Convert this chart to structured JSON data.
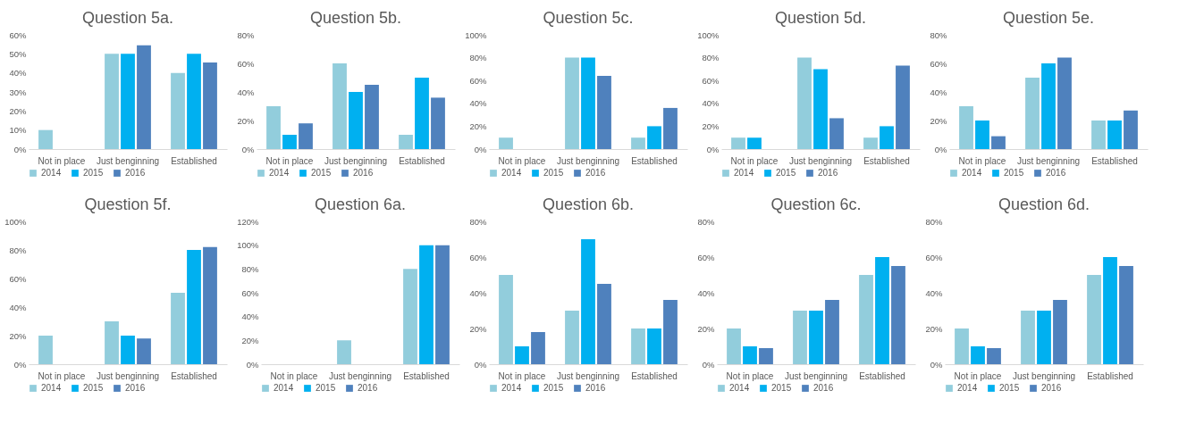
{
  "chart_data": [
    {
      "type": "bar",
      "title": "Question 5a.",
      "categories": [
        "Not in place",
        "Just benginning",
        "Established"
      ],
      "legend": "bottom",
      "ylim": [
        0,
        60
      ],
      "yticks": [
        {
          "value": 0,
          "label": "0%"
        },
        {
          "value": 10,
          "label": "10%"
        },
        {
          "value": 20,
          "label": "20%"
        },
        {
          "value": 30,
          "label": "30%"
        },
        {
          "value": 40,
          "label": "40%"
        },
        {
          "value": 50,
          "label": "50%"
        },
        {
          "value": 60,
          "label": "60%"
        }
      ],
      "series": [
        {
          "name": "2014",
          "color": "#92cddc",
          "values": [
            10,
            50,
            40
          ]
        },
        {
          "name": "2015",
          "color": "#00b0f0",
          "values": [
            0,
            50,
            50
          ]
        },
        {
          "name": "2016",
          "color": "#4f81bd",
          "values": [
            0,
            54.5,
            45.5
          ]
        }
      ]
    },
    {
      "type": "bar",
      "title": "Question 5b.",
      "categories": [
        "Not in place",
        "Just benginning",
        "Established"
      ],
      "legend": "bottom",
      "ylim": [
        0,
        80
      ],
      "yticks": [
        {
          "value": 0,
          "label": "0%"
        },
        {
          "value": 20,
          "label": "20%"
        },
        {
          "value": 40,
          "label": "40%"
        },
        {
          "value": 60,
          "label": "60%"
        },
        {
          "value": 80,
          "label": "80%"
        }
      ],
      "series": [
        {
          "name": "2014",
          "color": "#92cddc",
          "values": [
            30,
            60,
            10
          ]
        },
        {
          "name": "2015",
          "color": "#00b0f0",
          "values": [
            10,
            40,
            50
          ]
        },
        {
          "name": "2016",
          "color": "#4f81bd",
          "values": [
            18,
            45,
            36
          ]
        }
      ]
    },
    {
      "type": "bar",
      "title": "Question 5c.",
      "categories": [
        "Not in place",
        "Just benginning",
        "Established"
      ],
      "legend": "bottom",
      "ylim": [
        0,
        100
      ],
      "yticks": [
        {
          "value": 0,
          "label": "0%"
        },
        {
          "value": 20,
          "label": "20%"
        },
        {
          "value": 40,
          "label": "40%"
        },
        {
          "value": 60,
          "label": "60%"
        },
        {
          "value": 80,
          "label": "80%"
        },
        {
          "value": 100,
          "label": "100%"
        }
      ],
      "series": [
        {
          "name": "2014",
          "color": "#92cddc",
          "values": [
            10,
            80,
            10
          ]
        },
        {
          "name": "2015",
          "color": "#00b0f0",
          "values": [
            0,
            80,
            20
          ]
        },
        {
          "name": "2016",
          "color": "#4f81bd",
          "values": [
            0,
            64,
            36
          ]
        }
      ]
    },
    {
      "type": "bar",
      "title": "Question 5d.",
      "categories": [
        "Not in place",
        "Just benginning",
        "Established"
      ],
      "legend": "bottom",
      "ylim": [
        0,
        100
      ],
      "yticks": [
        {
          "value": 0,
          "label": "0%"
        },
        {
          "value": 20,
          "label": "20%"
        },
        {
          "value": 40,
          "label": "40%"
        },
        {
          "value": 60,
          "label": "60%"
        },
        {
          "value": 80,
          "label": "80%"
        },
        {
          "value": 100,
          "label": "100%"
        }
      ],
      "series": [
        {
          "name": "2014",
          "color": "#92cddc",
          "values": [
            10,
            80,
            10
          ]
        },
        {
          "name": "2015",
          "color": "#00b0f0",
          "values": [
            10,
            70,
            20
          ]
        },
        {
          "name": "2016",
          "color": "#4f81bd",
          "values": [
            0,
            27,
            73
          ]
        }
      ]
    },
    {
      "type": "bar",
      "title": "Question 5e.",
      "categories": [
        "Not in place",
        "Just benginning",
        "Established"
      ],
      "legend": "bottom",
      "ylim": [
        0,
        80
      ],
      "yticks": [
        {
          "value": 0,
          "label": "0%"
        },
        {
          "value": 20,
          "label": "20%"
        },
        {
          "value": 40,
          "label": "40%"
        },
        {
          "value": 60,
          "label": "60%"
        },
        {
          "value": 80,
          "label": "80%"
        }
      ],
      "series": [
        {
          "name": "2014",
          "color": "#92cddc",
          "values": [
            30,
            50,
            20
          ]
        },
        {
          "name": "2015",
          "color": "#00b0f0",
          "values": [
            20,
            60,
            20
          ]
        },
        {
          "name": "2016",
          "color": "#4f81bd",
          "values": [
            9,
            64,
            27
          ]
        }
      ]
    },
    {
      "type": "bar",
      "title": "Question 5f.",
      "categories": [
        "Not in place",
        "Just benginning",
        "Established"
      ],
      "legend": "bottom",
      "ylim": [
        0,
        100
      ],
      "yticks": [
        {
          "value": 0,
          "label": "0%"
        },
        {
          "value": 20,
          "label": "20%"
        },
        {
          "value": 40,
          "label": "40%"
        },
        {
          "value": 60,
          "label": "60%"
        },
        {
          "value": 80,
          "label": "80%"
        },
        {
          "value": 100,
          "label": "100%"
        }
      ],
      "series": [
        {
          "name": "2014",
          "color": "#92cddc",
          "values": [
            20,
            30,
            50
          ]
        },
        {
          "name": "2015",
          "color": "#00b0f0",
          "values": [
            0,
            20,
            80
          ]
        },
        {
          "name": "2016",
          "color": "#4f81bd",
          "values": [
            0,
            18,
            82
          ]
        }
      ]
    },
    {
      "type": "bar",
      "title": "Question 6a.",
      "categories": [
        "Not in place",
        "Just benginning",
        "Established"
      ],
      "legend": "bottom",
      "ylim": [
        0,
        120
      ],
      "yticks": [
        {
          "value": 0,
          "label": "0%"
        },
        {
          "value": 20,
          "label": "20%"
        },
        {
          "value": 40,
          "label": "40%"
        },
        {
          "value": 60,
          "label": "60%"
        },
        {
          "value": 80,
          "label": "80%"
        },
        {
          "value": 100,
          "label": "100%"
        },
        {
          "value": 120,
          "label": "120%"
        }
      ],
      "series": [
        {
          "name": "2014",
          "color": "#92cddc",
          "values": [
            0,
            20,
            80
          ]
        },
        {
          "name": "2015",
          "color": "#00b0f0",
          "values": [
            0,
            0,
            100
          ]
        },
        {
          "name": "2016",
          "color": "#4f81bd",
          "values": [
            0,
            0,
            100
          ]
        }
      ]
    },
    {
      "type": "bar",
      "title": "Question 6b.",
      "categories": [
        "Not in place",
        "Just benginning",
        "Established"
      ],
      "legend": "bottom",
      "ylim": [
        0,
        80
      ],
      "yticks": [
        {
          "value": 0,
          "label": "0%"
        },
        {
          "value": 20,
          "label": "20%"
        },
        {
          "value": 40,
          "label": "40%"
        },
        {
          "value": 60,
          "label": "60%"
        },
        {
          "value": 80,
          "label": "80%"
        }
      ],
      "series": [
        {
          "name": "2014",
          "color": "#92cddc",
          "values": [
            50,
            30,
            20
          ]
        },
        {
          "name": "2015",
          "color": "#00b0f0",
          "values": [
            10,
            70,
            20
          ]
        },
        {
          "name": "2016",
          "color": "#4f81bd",
          "values": [
            18,
            45,
            36
          ]
        }
      ]
    },
    {
      "type": "bar",
      "title": "Question 6c.",
      "categories": [
        "Not in place",
        "Just benginning",
        "Established"
      ],
      "legend": "bottom",
      "ylim": [
        0,
        80
      ],
      "yticks": [
        {
          "value": 0,
          "label": "0%"
        },
        {
          "value": 20,
          "label": "20%"
        },
        {
          "value": 40,
          "label": "40%"
        },
        {
          "value": 60,
          "label": "60%"
        },
        {
          "value": 80,
          "label": "80%"
        }
      ],
      "series": [
        {
          "name": "2014",
          "color": "#92cddc",
          "values": [
            20,
            30,
            50
          ]
        },
        {
          "name": "2015",
          "color": "#00b0f0",
          "values": [
            10,
            30,
            60
          ]
        },
        {
          "name": "2016",
          "color": "#4f81bd",
          "values": [
            9,
            36,
            55
          ]
        }
      ]
    },
    {
      "type": "bar",
      "title": "Question 6d.",
      "categories": [
        "Not in place",
        "Just benginning",
        "Established"
      ],
      "legend": "bottom",
      "ylim": [
        0,
        80
      ],
      "yticks": [
        {
          "value": 0,
          "label": "0%"
        },
        {
          "value": 20,
          "label": "20%"
        },
        {
          "value": 40,
          "label": "40%"
        },
        {
          "value": 60,
          "label": "60%"
        },
        {
          "value": 80,
          "label": "80%"
        }
      ],
      "series": [
        {
          "name": "2014",
          "color": "#92cddc",
          "values": [
            20,
            30,
            50
          ]
        },
        {
          "name": "2015",
          "color": "#00b0f0",
          "values": [
            10,
            30,
            60
          ]
        },
        {
          "name": "2016",
          "color": "#4f81bd",
          "values": [
            9,
            36,
            55
          ]
        }
      ]
    }
  ]
}
